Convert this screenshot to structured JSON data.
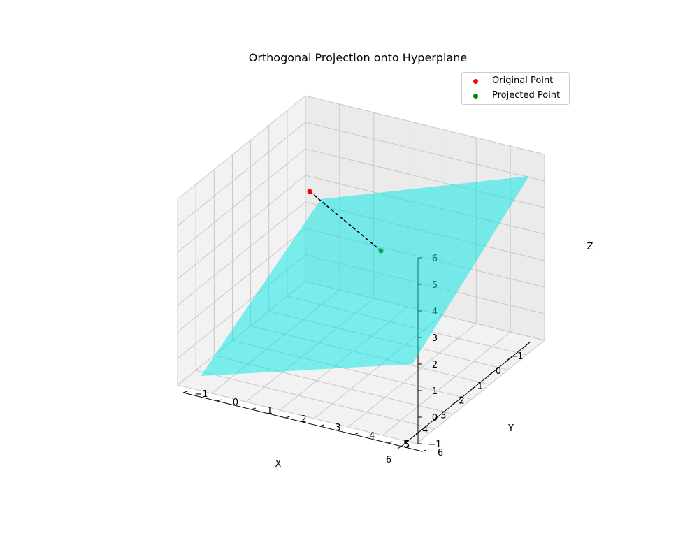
{
  "chart_data": {
    "type": "3d-scatter-surface",
    "title": "Orthogonal Projection onto Hyperplane",
    "xlabel": "X",
    "ylabel": "Y",
    "zlabel": "Z",
    "xlim": [
      -1,
      6
    ],
    "ylim": [
      -1,
      6
    ],
    "zlim": [
      -1,
      6
    ],
    "x_ticks": [
      "−1",
      "0",
      "1",
      "2",
      "3",
      "4",
      "5",
      "6"
    ],
    "y_ticks": [
      "−1",
      "0",
      "1",
      "2",
      "3",
      "4",
      "5",
      "6"
    ],
    "z_ticks": [
      "−1",
      "0",
      "1",
      "2",
      "3",
      "4",
      "5",
      "6"
    ],
    "plane": {
      "equation": "z = -1 + x/2 + y/2 (approx)",
      "x_range": [
        -1,
        6
      ],
      "y_range": [
        -1,
        6
      ],
      "color": "#00e5e5",
      "alpha": 0.5
    },
    "series": [
      {
        "name": "Original Point",
        "color": "#ff0000",
        "point": [
          1,
          5,
          6
        ]
      },
      {
        "name": "Projected Point",
        "color": "#008000",
        "point": [
          2.67,
          4.33,
          2.5
        ]
      }
    ],
    "projection_line": {
      "from": [
        1,
        5,
        6
      ],
      "to": [
        2.67,
        4.33,
        2.5
      ],
      "style": "dashed",
      "color": "#000000"
    },
    "legend": {
      "position": "top-right"
    }
  }
}
